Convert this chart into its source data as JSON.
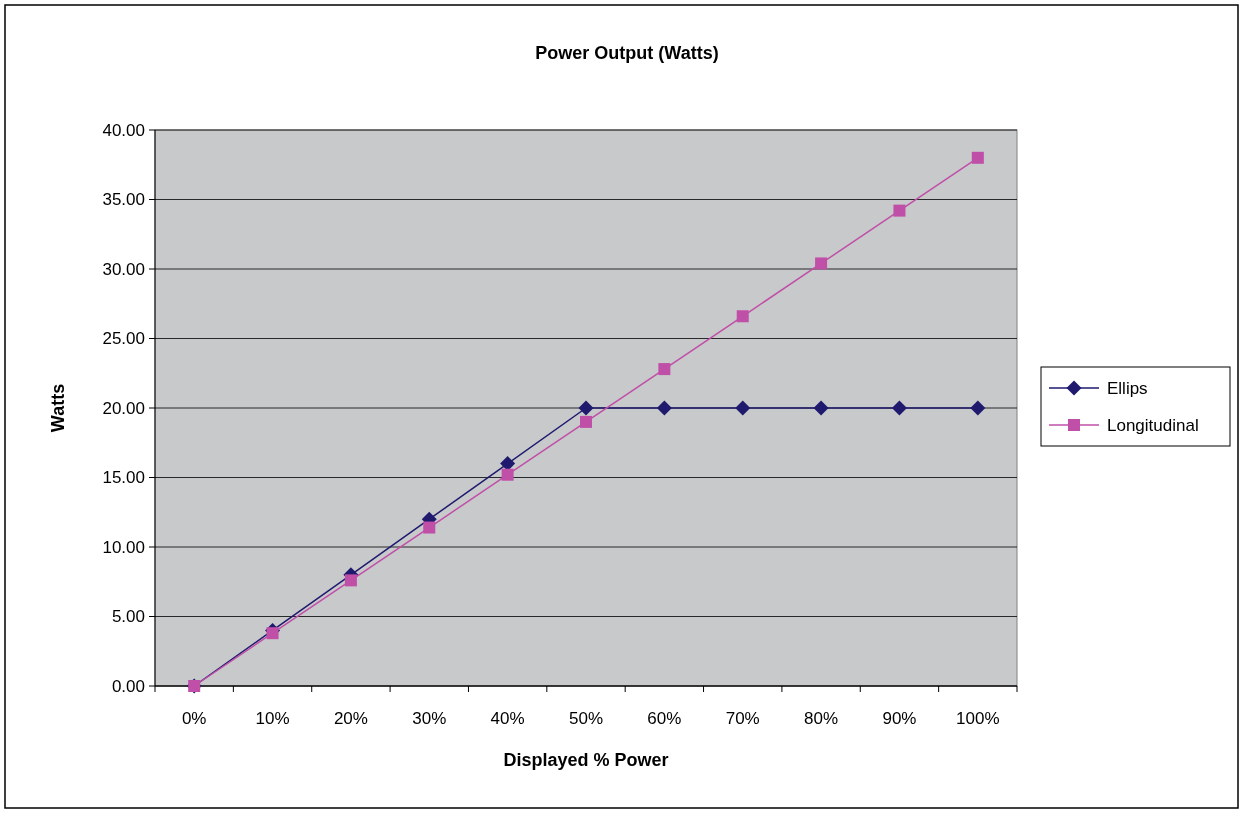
{
  "chart_data": {
    "type": "line",
    "title": "Power Output (Watts)",
    "xlabel": "Displayed % Power",
    "ylabel": "Watts",
    "categories": [
      "0%",
      "10%",
      "20%",
      "30%",
      "40%",
      "50%",
      "60%",
      "70%",
      "80%",
      "90%",
      "100%"
    ],
    "series": [
      {
        "name": "Ellips",
        "color": "#1f1a6e",
        "marker": "diamond",
        "values": [
          0,
          4,
          8,
          12,
          16,
          20,
          20,
          20,
          20,
          20,
          20
        ]
      },
      {
        "name": "Longitudinal",
        "color": "#c04fa8",
        "marker": "square",
        "values": [
          0,
          3.8,
          7.6,
          11.4,
          15.2,
          19.0,
          22.8,
          26.6,
          30.4,
          34.2,
          38.0
        ]
      }
    ],
    "ylim": [
      0,
      40
    ],
    "yticks": [
      {
        "value": 0,
        "label": "0.00"
      },
      {
        "value": 5,
        "label": "5.00"
      },
      {
        "value": 10,
        "label": "10.00"
      },
      {
        "value": 15,
        "label": "15.00"
      },
      {
        "value": 20,
        "label": "20.00"
      },
      {
        "value": 25,
        "label": "25.00"
      },
      {
        "value": 30,
        "label": "30.00"
      },
      {
        "value": 35,
        "label": "35.00"
      },
      {
        "value": 40,
        "label": "40.00"
      }
    ],
    "grid": "y",
    "legend": "right"
  }
}
